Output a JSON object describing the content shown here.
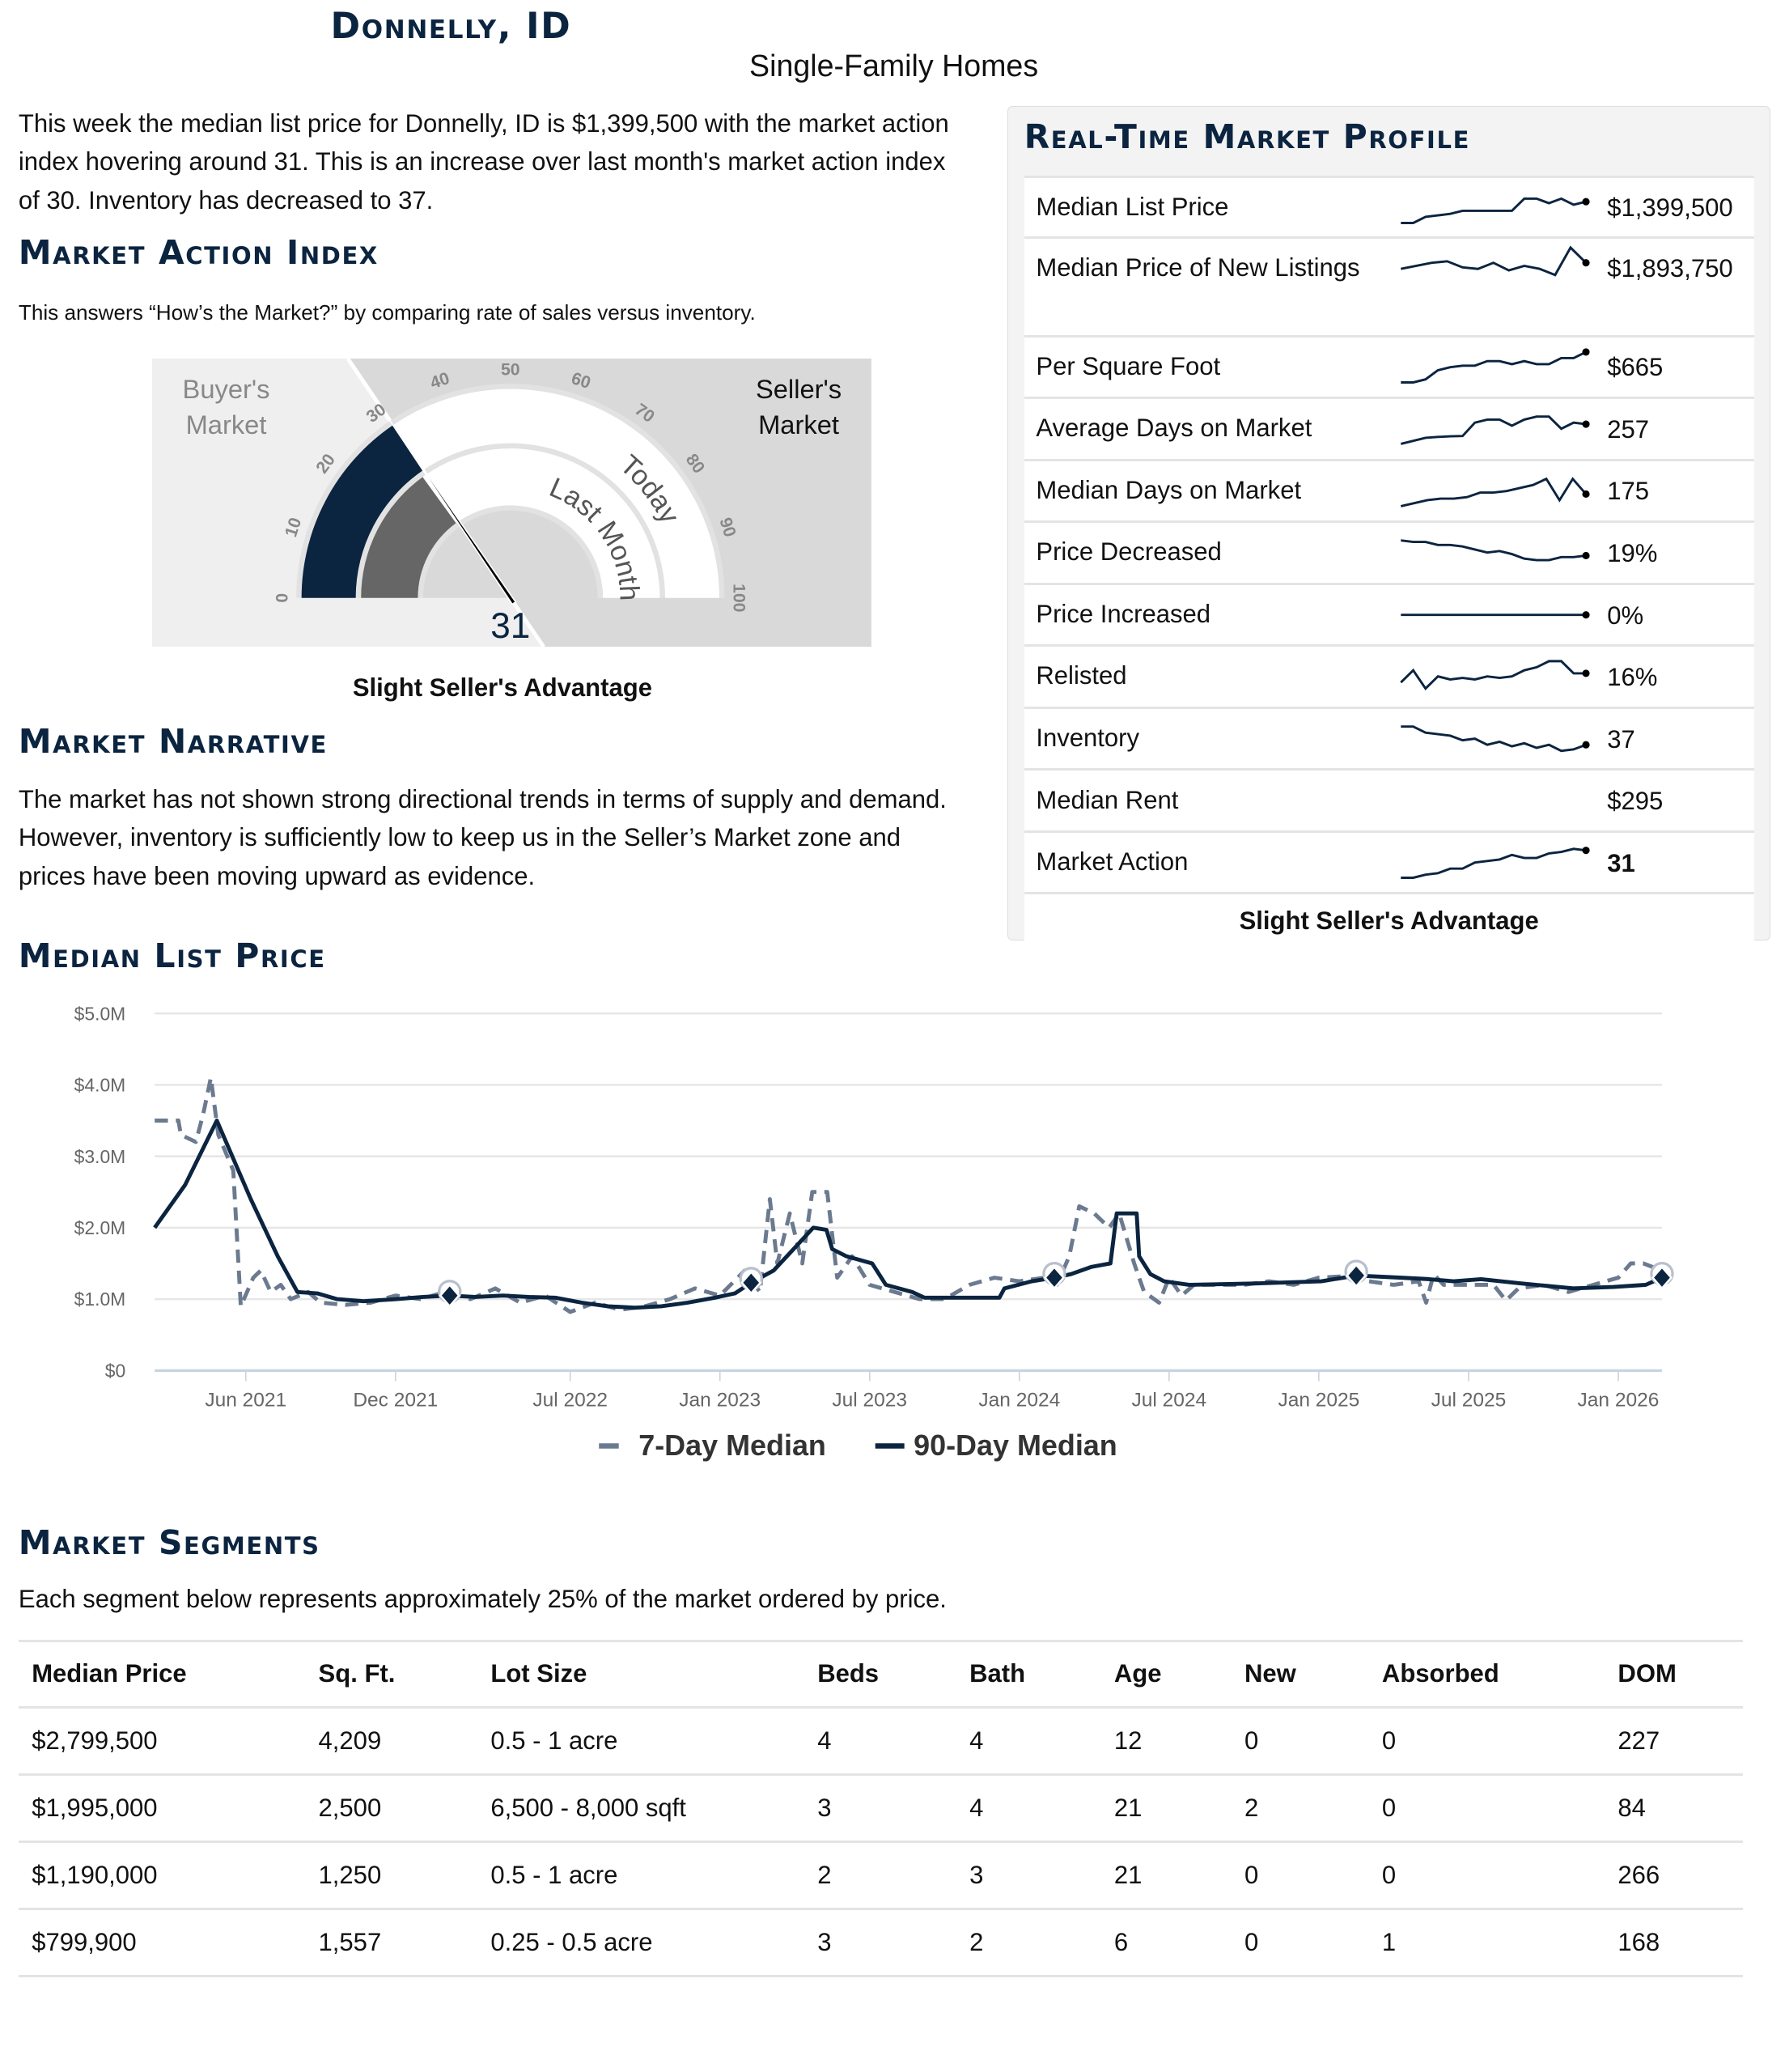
{
  "header": {
    "title": "Donnelly, ID",
    "subtitle": "Single-Family Homes"
  },
  "intro": "This week the median list price for Donnelly, ID is $1,399,500 with the market action index hovering around 31. This is an increase over last month's market action index of 30. Inventory has decreased to 37.",
  "mai": {
    "heading": "Market Action Index",
    "description": "This answers “How’s the Market?” by comparing rate of sales versus inventory.",
    "gauge": {
      "value": 31,
      "last_month": 30,
      "buyers_label_1": "Buyer's",
      "buyers_label_2": "Market",
      "sellers_label_1": "Seller's",
      "sellers_label_2": "Market",
      "today_label": "Today",
      "last_month_label": "Last Month",
      "ticks": [
        "0",
        "10",
        "20",
        "30",
        "40",
        "50",
        "60",
        "70",
        "80",
        "90",
        "100"
      ],
      "value_label": "31",
      "navy": "#0b2440",
      "gray": "#666666"
    },
    "verdict": "Slight Seller's Advantage"
  },
  "narrative": {
    "heading": "Market Narrative",
    "text": "The market has not shown strong directional trends in terms of supply and demand. However, inventory is sufficiently low to keep us in the Seller’s Market zone and prices have been moving upward as evidence."
  },
  "profile": {
    "heading": "Real-Time Market Profile",
    "verdict": "Slight Seller's Advantage",
    "rows": [
      {
        "label": "Median List Price",
        "value": "$1,399,500",
        "spark": [
          0,
          0,
          2,
          2.5,
          3,
          4,
          4,
          4,
          4,
          4,
          8,
          8,
          6.5,
          8,
          6,
          7
        ]
      },
      {
        "label": "Median Price of New Listings",
        "value": "$1,893,750",
        "spark": [
          3,
          4,
          5,
          5.5,
          3.5,
          3,
          5,
          2.5,
          4,
          3,
          1,
          10,
          5
        ]
      },
      {
        "label": "Per Square Foot",
        "value": "$665",
        "spark": [
          0,
          0,
          1,
          4,
          5,
          5.5,
          5.5,
          7,
          7,
          6,
          7,
          6,
          6,
          8,
          8,
          10
        ]
      },
      {
        "label": "Average Days on Market",
        "value": "257",
        "spark": [
          0,
          1,
          2,
          2.3,
          2.5,
          2.6,
          7,
          8,
          8,
          6,
          8,
          9,
          9,
          5,
          7,
          6.5
        ]
      },
      {
        "label": "Median Days on Market",
        "value": "175",
        "spark": [
          0,
          1,
          2,
          2.5,
          2.5,
          3,
          4.5,
          4.5,
          5,
          6,
          7,
          9,
          2,
          9,
          4
        ]
      },
      {
        "label": "Price Decreased",
        "value": "19%",
        "spark": [
          9,
          8.5,
          8.5,
          7.5,
          7.5,
          7,
          6,
          5,
          5.5,
          4.5,
          3,
          2.5,
          2.5,
          3.5,
          3.5,
          4
        ]
      },
      {
        "label": "Price Increased",
        "value": "0%",
        "spark": [
          5,
          5,
          5,
          5,
          5,
          5,
          5,
          5,
          5,
          5,
          5,
          5,
          5,
          5,
          5,
          5
        ]
      },
      {
        "label": "Relisted",
        "value": "16%",
        "spark": [
          3,
          7,
          1,
          5,
          4,
          4.5,
          4,
          5,
          4.5,
          5,
          7,
          8,
          10,
          10,
          6,
          6
        ]
      },
      {
        "label": "Inventory",
        "value": "37",
        "spark": [
          9,
          9,
          7,
          6.5,
          6,
          4.5,
          5,
          3,
          4,
          2.5,
          3.5,
          2,
          3,
          1,
          1.5,
          3
        ]
      },
      {
        "label": "Median Rent",
        "value": "$295",
        "spark": []
      },
      {
        "label": "Market Action",
        "value": "31",
        "spark": [
          0,
          0,
          1,
          1.5,
          3,
          3,
          5,
          5.5,
          6,
          7.5,
          6.5,
          6.5,
          8,
          8.5,
          9.5,
          9
        ]
      }
    ]
  },
  "chart_data": {
    "type": "line",
    "title": "Median List Price",
    "xlabel": "",
    "ylabel": "",
    "yticks": [
      "$0",
      "$1.0M",
      "$2.0M",
      "$3.0M",
      "$4.0M",
      "$5.0M"
    ],
    "ylim": [
      0,
      5
    ],
    "xlim": [
      1.35,
      61.75
    ],
    "x_unit": "months since Jan 2021",
    "xticks": [
      {
        "label": "Jun 2021",
        "x": 5
      },
      {
        "label": "Dec 2021",
        "x": 11
      },
      {
        "label": "Jul 2022",
        "x": 18
      },
      {
        "label": "Jan 2023",
        "x": 24
      },
      {
        "label": "Jul 2023",
        "x": 30
      },
      {
        "label": "Jan 2024",
        "x": 36
      },
      {
        "label": "Jul 2024",
        "x": 42
      },
      {
        "label": "Jan 2025",
        "x": 48
      },
      {
        "label": "Jul 2025",
        "x": 54
      },
      {
        "label": "Jan 2026",
        "x": 60
      }
    ],
    "series": [
      {
        "name": "7-Day Median",
        "color": "#6b7a8f",
        "dashed": true,
        "points": [
          [
            1.35,
            3.5
          ],
          [
            2.3,
            3.5
          ],
          [
            2.4,
            3.3
          ],
          [
            3.0,
            3.2
          ],
          [
            3.3,
            3.6
          ],
          [
            3.6,
            4.1
          ],
          [
            3.9,
            3.3
          ],
          [
            4.5,
            2.8
          ],
          [
            4.8,
            0.9
          ],
          [
            5.3,
            1.3
          ],
          [
            5.6,
            1.4
          ],
          [
            6.0,
            1.1
          ],
          [
            6.4,
            1.2
          ],
          [
            6.8,
            1.0
          ],
          [
            7.5,
            1.1
          ],
          [
            8,
            0.95
          ],
          [
            9,
            0.92
          ],
          [
            10,
            0.95
          ],
          [
            11,
            1.05
          ],
          [
            12,
            1.0
          ],
          [
            13,
            1.1
          ],
          [
            14,
            1.0
          ],
          [
            15,
            1.15
          ],
          [
            16,
            0.95
          ],
          [
            17,
            1.05
          ],
          [
            18,
            0.82
          ],
          [
            19,
            0.95
          ],
          [
            20,
            0.85
          ],
          [
            21,
            0.9
          ],
          [
            22,
            1.0
          ],
          [
            23,
            1.15
          ],
          [
            24,
            1.05
          ],
          [
            25,
            1.4
          ],
          [
            25.6,
            1.1
          ],
          [
            26,
            2.4
          ],
          [
            26.3,
            1.5
          ],
          [
            26.8,
            2.2
          ],
          [
            27.3,
            1.5
          ],
          [
            27.7,
            2.5
          ],
          [
            28.3,
            2.5
          ],
          [
            28.7,
            1.3
          ],
          [
            29.3,
            1.6
          ],
          [
            30,
            1.2
          ],
          [
            31,
            1.1
          ],
          [
            32,
            1.0
          ],
          [
            33,
            1.0
          ],
          [
            34,
            1.2
          ],
          [
            35,
            1.3
          ],
          [
            36,
            1.25
          ],
          [
            37,
            1.3
          ],
          [
            37.5,
            1.2
          ],
          [
            38,
            1.6
          ],
          [
            38.4,
            2.3
          ],
          [
            39,
            2.2
          ],
          [
            39.6,
            2.0
          ],
          [
            40,
            2.2
          ],
          [
            40.6,
            1.5
          ],
          [
            41,
            1.1
          ],
          [
            41.6,
            0.95
          ],
          [
            42,
            1.3
          ],
          [
            42.5,
            1.05
          ],
          [
            43,
            1.2
          ],
          [
            44,
            1.2
          ],
          [
            45,
            1.2
          ],
          [
            46,
            1.25
          ],
          [
            47,
            1.2
          ],
          [
            48,
            1.3
          ],
          [
            49,
            1.32
          ],
          [
            50,
            1.25
          ],
          [
            51,
            1.2
          ],
          [
            52,
            1.25
          ],
          [
            52.3,
            0.95
          ],
          [
            52.6,
            1.35
          ],
          [
            53,
            1.2
          ],
          [
            54,
            1.2
          ],
          [
            55,
            1.2
          ],
          [
            55.5,
            0.98
          ],
          [
            56,
            1.15
          ],
          [
            57,
            1.2
          ],
          [
            58,
            1.1
          ],
          [
            59,
            1.2
          ],
          [
            60,
            1.3
          ],
          [
            60.5,
            1.5
          ],
          [
            61,
            1.5
          ],
          [
            61.75,
            1.4
          ]
        ]
      },
      {
        "name": "90-Day Median",
        "color": "#0b2440",
        "dashed": false,
        "points": [
          [
            1.35,
            2.0
          ],
          [
            2.57,
            2.6
          ],
          [
            3.84,
            3.5
          ],
          [
            5.2,
            2.4
          ],
          [
            6.28,
            1.6
          ],
          [
            7.07,
            1.1
          ],
          [
            7.87,
            1.08
          ],
          [
            8.66,
            1.0
          ],
          [
            9.72,
            0.97
          ],
          [
            11.05,
            1.0
          ],
          [
            12.1,
            1.03
          ],
          [
            13.17,
            1.05
          ],
          [
            14.2,
            1.03
          ],
          [
            15.3,
            1.05
          ],
          [
            16.35,
            1.03
          ],
          [
            17.4,
            1.02
          ],
          [
            18.47,
            0.95
          ],
          [
            19.5,
            0.9
          ],
          [
            20.6,
            0.88
          ],
          [
            21.65,
            0.9
          ],
          [
            22.7,
            0.95
          ],
          [
            23.8,
            1.02
          ],
          [
            24.6,
            1.08
          ],
          [
            25.25,
            1.23
          ],
          [
            26.15,
            1.4
          ],
          [
            26.95,
            1.7
          ],
          [
            27.74,
            2.0
          ],
          [
            28.27,
            1.97
          ],
          [
            28.5,
            1.7
          ],
          [
            29.07,
            1.6
          ],
          [
            30.1,
            1.5
          ],
          [
            30.65,
            1.2
          ],
          [
            31.7,
            1.1
          ],
          [
            32.2,
            1.02
          ],
          [
            33.3,
            1.02
          ],
          [
            35.2,
            1.02
          ],
          [
            35.4,
            1.15
          ],
          [
            36.5,
            1.25
          ],
          [
            37.4,
            1.3
          ],
          [
            38.07,
            1.35
          ],
          [
            38.87,
            1.45
          ],
          [
            39.65,
            1.5
          ],
          [
            39.9,
            2.2
          ],
          [
            40.7,
            2.2
          ],
          [
            40.8,
            1.6
          ],
          [
            41.25,
            1.35
          ],
          [
            41.8,
            1.25
          ],
          [
            42.8,
            1.2
          ],
          [
            45.5,
            1.22
          ],
          [
            48.1,
            1.25
          ],
          [
            49.5,
            1.33
          ],
          [
            51.3,
            1.3
          ],
          [
            52.4,
            1.28
          ],
          [
            53.4,
            1.25
          ],
          [
            54.5,
            1.28
          ],
          [
            56.1,
            1.22
          ],
          [
            58.2,
            1.15
          ],
          [
            59.8,
            1.17
          ],
          [
            61.1,
            1.2
          ],
          [
            61.75,
            1.3
          ]
        ]
      }
    ],
    "markers": [
      [
        13.17,
        1.05
      ],
      [
        25.25,
        1.23
      ],
      [
        37.4,
        1.3
      ],
      [
        49.5,
        1.33
      ],
      [
        61.75,
        1.3
      ]
    ],
    "legend": [
      "7-Day Median",
      "90-Day Median"
    ],
    "legend_position": "bottom"
  },
  "segments": {
    "heading": "Market Segments",
    "description": "Each segment below represents approximately 25% of the market ordered by price.",
    "columns": [
      "Median Price",
      "Sq. Ft.",
      "Lot Size",
      "Beds",
      "Bath",
      "Age",
      "New",
      "Absorbed",
      "DOM"
    ],
    "rows": [
      [
        "$2,799,500",
        "4,209",
        "0.5 - 1 acre",
        "4",
        "4",
        "12",
        "0",
        "0",
        "227"
      ],
      [
        "$1,995,000",
        "2,500",
        "6,500 - 8,000 sqft",
        "3",
        "4",
        "21",
        "2",
        "0",
        "84"
      ],
      [
        "$1,190,000",
        "1,250",
        "0.5 - 1 acre",
        "2",
        "3",
        "21",
        "0",
        "0",
        "266"
      ],
      [
        "$799,900",
        "1,557",
        "0.25 - 0.5 acre",
        "3",
        "2",
        "6",
        "0",
        "1",
        "168"
      ]
    ]
  }
}
